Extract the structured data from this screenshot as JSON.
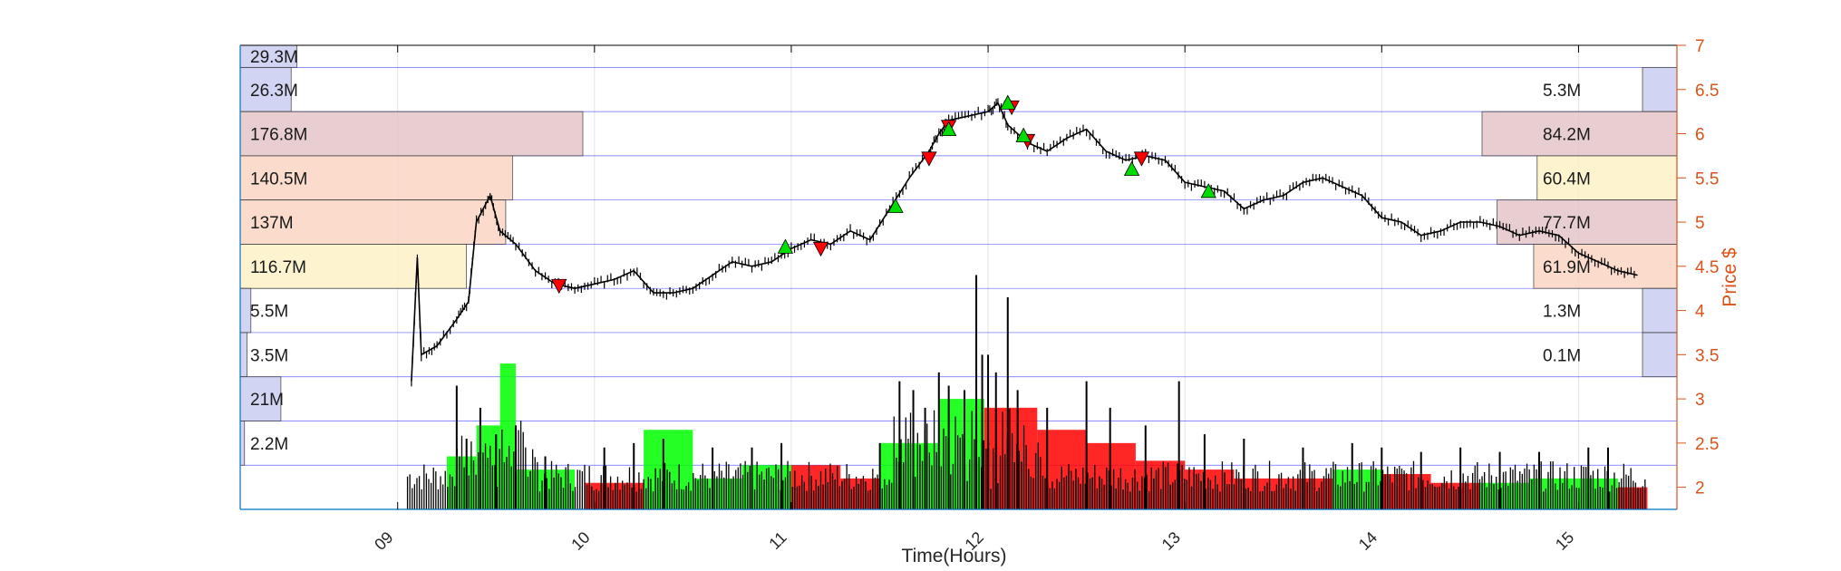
{
  "chart_data": {
    "type": "candlestick",
    "xlabel": "Time(Hours)",
    "ylabel": "Price $",
    "x_ticks": [
      "09",
      "10",
      "11",
      "12",
      "13",
      "14",
      "15"
    ],
    "xlim_hours": [
      8.2,
      15.5
    ],
    "y_ticks": [
      "2",
      "2.5",
      "3",
      "3.5",
      "4",
      "4.5",
      "5",
      "5.5",
      "6",
      "6.5",
      "7"
    ],
    "ylim": [
      1.75,
      7.0
    ],
    "grid": true,
    "colors": {
      "axis_right": "#d95319",
      "price_line": "#000000",
      "volume_up": "#00ff00",
      "volume_down": "#ff0000",
      "band_line": "#0000ff",
      "low_volume_profile": "#c9cdf0",
      "mid_volume_profile": "#e4c6c8",
      "high_volume_profile": "#fbd5c4",
      "light_volume_profile": "#fdf2c7"
    },
    "volume_profile_bands": [
      {
        "price_low": 6.75,
        "price_high": 7.0,
        "left": "29.3M",
        "right": ""
      },
      {
        "price_low": 6.25,
        "price_high": 6.75,
        "left": "26.3M",
        "right": "5.3M"
      },
      {
        "price_low": 5.75,
        "price_high": 6.25,
        "left": "176.8M",
        "right": "84.2M"
      },
      {
        "price_low": 5.25,
        "price_high": 5.75,
        "left": "140.5M",
        "right": "60.4M"
      },
      {
        "price_low": 4.75,
        "price_high": 5.25,
        "left": "137M",
        "right": "77.7M"
      },
      {
        "price_low": 4.25,
        "price_high": 4.75,
        "left": "116.7M",
        "right": "61.9M"
      },
      {
        "price_low": 3.75,
        "price_high": 4.25,
        "left": "5.5M",
        "right": "1.3M"
      },
      {
        "price_low": 3.25,
        "price_high": 3.75,
        "left": "3.5M",
        "right": "0.1M"
      },
      {
        "price_low": 2.75,
        "price_high": 3.25,
        "left": "21M",
        "right": ""
      },
      {
        "price_low": 2.25,
        "price_high": 2.75,
        "left": "2.2M",
        "right": ""
      }
    ],
    "price_path": [
      [
        9.07,
        3.2
      ],
      [
        9.1,
        4.6
      ],
      [
        9.12,
        3.5
      ],
      [
        9.2,
        3.6
      ],
      [
        9.3,
        3.9
      ],
      [
        9.36,
        4.1
      ],
      [
        9.4,
        5.0
      ],
      [
        9.47,
        5.3
      ],
      [
        9.52,
        4.9
      ],
      [
        9.6,
        4.75
      ],
      [
        9.7,
        4.45
      ],
      [
        9.8,
        4.3
      ],
      [
        9.9,
        4.25
      ],
      [
        10.0,
        4.3
      ],
      [
        10.1,
        4.35
      ],
      [
        10.2,
        4.45
      ],
      [
        10.3,
        4.2
      ],
      [
        10.4,
        4.2
      ],
      [
        10.5,
        4.25
      ],
      [
        10.6,
        4.4
      ],
      [
        10.7,
        4.55
      ],
      [
        10.8,
        4.5
      ],
      [
        10.9,
        4.55
      ],
      [
        11.0,
        4.7
      ],
      [
        11.1,
        4.8
      ],
      [
        11.2,
        4.75
      ],
      [
        11.3,
        4.9
      ],
      [
        11.4,
        4.8
      ],
      [
        11.5,
        5.15
      ],
      [
        11.6,
        5.5
      ],
      [
        11.7,
        5.8
      ],
      [
        11.75,
        6.0
      ],
      [
        11.8,
        6.15
      ],
      [
        11.9,
        6.2
      ],
      [
        12.0,
        6.25
      ],
      [
        12.05,
        6.35
      ],
      [
        12.1,
        6.1
      ],
      [
        12.2,
        5.9
      ],
      [
        12.3,
        5.8
      ],
      [
        12.4,
        5.95
      ],
      [
        12.5,
        6.05
      ],
      [
        12.6,
        5.8
      ],
      [
        12.7,
        5.7
      ],
      [
        12.8,
        5.75
      ],
      [
        12.9,
        5.7
      ],
      [
        13.0,
        5.45
      ],
      [
        13.1,
        5.4
      ],
      [
        13.2,
        5.35
      ],
      [
        13.3,
        5.15
      ],
      [
        13.4,
        5.25
      ],
      [
        13.5,
        5.3
      ],
      [
        13.6,
        5.45
      ],
      [
        13.7,
        5.5
      ],
      [
        13.8,
        5.4
      ],
      [
        13.9,
        5.3
      ],
      [
        14.0,
        5.05
      ],
      [
        14.1,
        5.0
      ],
      [
        14.2,
        4.85
      ],
      [
        14.3,
        4.9
      ],
      [
        14.4,
        5.0
      ],
      [
        14.5,
        5.0
      ],
      [
        14.6,
        4.95
      ],
      [
        14.7,
        4.85
      ],
      [
        14.8,
        4.9
      ],
      [
        14.9,
        4.85
      ],
      [
        15.0,
        4.65
      ],
      [
        15.1,
        4.55
      ],
      [
        15.2,
        4.45
      ],
      [
        15.3,
        4.4
      ]
    ],
    "signals_down": [
      [
        9.82,
        4.28
      ],
      [
        11.15,
        4.7
      ],
      [
        11.7,
        5.72
      ],
      [
        11.8,
        6.08
      ],
      [
        12.12,
        6.3
      ],
      [
        12.2,
        5.92
      ],
      [
        12.78,
        5.72
      ]
    ],
    "signals_up": [
      [
        10.97,
        4.72
      ],
      [
        11.53,
        5.18
      ],
      [
        11.8,
        6.05
      ],
      [
        12.1,
        6.35
      ],
      [
        12.18,
        5.98
      ],
      [
        12.73,
        5.6
      ],
      [
        13.12,
        5.35
      ]
    ],
    "volume_blocks": [
      {
        "x0": 9.25,
        "x1": 9.4,
        "top_price": 2.35,
        "color": "up"
      },
      {
        "x0": 9.4,
        "x1": 9.52,
        "top_price": 2.7,
        "color": "up"
      },
      {
        "x0": 9.52,
        "x1": 9.6,
        "top_price": 3.4,
        "color": "up"
      },
      {
        "x0": 9.6,
        "x1": 9.9,
        "top_price": 2.2,
        "color": "up"
      },
      {
        "x0": 9.95,
        "x1": 10.25,
        "top_price": 2.05,
        "color": "down"
      },
      {
        "x0": 10.25,
        "x1": 10.5,
        "top_price": 2.65,
        "color": "up"
      },
      {
        "x0": 10.5,
        "x1": 10.75,
        "top_price": 2.1,
        "color": "up"
      },
      {
        "x0": 10.75,
        "x1": 11.0,
        "top_price": 2.25,
        "color": "up"
      },
      {
        "x0": 11.0,
        "x1": 11.25,
        "top_price": 2.25,
        "color": "down"
      },
      {
        "x0": 11.25,
        "x1": 11.45,
        "top_price": 2.1,
        "color": "down"
      },
      {
        "x0": 11.45,
        "x1": 11.75,
        "top_price": 2.5,
        "color": "up"
      },
      {
        "x0": 11.75,
        "x1": 11.98,
        "top_price": 3.0,
        "color": "up"
      },
      {
        "x0": 11.98,
        "x1": 12.25,
        "top_price": 2.9,
        "color": "down"
      },
      {
        "x0": 12.25,
        "x1": 12.5,
        "top_price": 2.65,
        "color": "down"
      },
      {
        "x0": 12.5,
        "x1": 12.75,
        "top_price": 2.5,
        "color": "down"
      },
      {
        "x0": 12.75,
        "x1": 13.0,
        "top_price": 2.3,
        "color": "down"
      },
      {
        "x0": 13.0,
        "x1": 13.25,
        "top_price": 2.2,
        "color": "down"
      },
      {
        "x0": 13.25,
        "x1": 13.5,
        "top_price": 2.1,
        "color": "down"
      },
      {
        "x0": 13.5,
        "x1": 13.75,
        "top_price": 2.1,
        "color": "down"
      },
      {
        "x0": 13.75,
        "x1": 14.0,
        "top_price": 2.2,
        "color": "up"
      },
      {
        "x0": 14.0,
        "x1": 14.25,
        "top_price": 2.15,
        "color": "down"
      },
      {
        "x0": 14.25,
        "x1": 14.5,
        "top_price": 2.05,
        "color": "down"
      },
      {
        "x0": 14.5,
        "x1": 14.75,
        "top_price": 2.05,
        "color": "up"
      },
      {
        "x0": 14.75,
        "x1": 15.0,
        "top_price": 2.1,
        "color": "up"
      },
      {
        "x0": 15.0,
        "x1": 15.2,
        "top_price": 2.1,
        "color": "up"
      },
      {
        "x0": 15.2,
        "x1": 15.35,
        "top_price": 2.0,
        "color": "down"
      }
    ],
    "volume_spikes": [
      [
        9.3,
        3.15
      ],
      [
        9.35,
        2.55
      ],
      [
        9.42,
        2.9
      ],
      [
        9.5,
        2.6
      ],
      [
        9.6,
        2.7
      ],
      [
        9.75,
        2.35
      ],
      [
        10.05,
        2.45
      ],
      [
        10.2,
        2.5
      ],
      [
        10.35,
        2.55
      ],
      [
        10.6,
        2.45
      ],
      [
        10.8,
        2.45
      ],
      [
        10.95,
        2.5
      ],
      [
        11.45,
        2.5
      ],
      [
        11.55,
        3.2
      ],
      [
        11.62,
        3.1
      ],
      [
        11.68,
        2.9
      ],
      [
        11.75,
        3.3
      ],
      [
        11.8,
        3.15
      ],
      [
        11.88,
        3.1
      ],
      [
        11.94,
        4.4
      ],
      [
        11.97,
        3.5
      ],
      [
        12.0,
        3.5
      ],
      [
        12.04,
        3.3
      ],
      [
        12.1,
        4.15
      ],
      [
        12.15,
        3.1
      ],
      [
        12.3,
        2.9
      ],
      [
        12.5,
        3.2
      ],
      [
        12.62,
        2.9
      ],
      [
        12.8,
        2.7
      ],
      [
        12.97,
        3.2
      ],
      [
        13.1,
        2.6
      ],
      [
        13.3,
        2.55
      ],
      [
        13.6,
        2.45
      ],
      [
        13.85,
        2.5
      ],
      [
        14.0,
        2.45
      ],
      [
        14.2,
        2.4
      ],
      [
        14.4,
        2.45
      ],
      [
        14.6,
        2.4
      ],
      [
        14.8,
        2.4
      ],
      [
        15.05,
        2.45
      ],
      [
        15.15,
        2.45
      ]
    ]
  }
}
